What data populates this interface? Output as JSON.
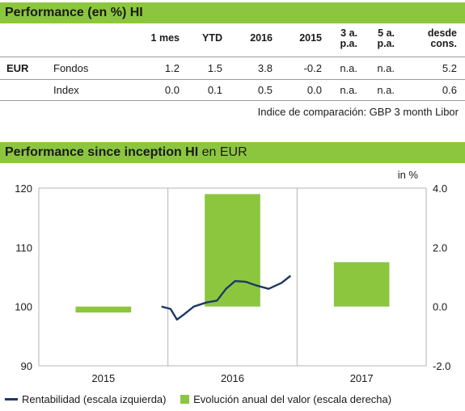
{
  "performance": {
    "title_bold": "Performance (en %) HI",
    "columns": [
      "1 mes",
      "YTD",
      "2016",
      "2015",
      "3 a.\np.a.",
      "5 a.\np.a.",
      "desde\ncons."
    ],
    "currency": "EUR",
    "rows": [
      {
        "label": "Fondos",
        "values": [
          "1.2",
          "1.5",
          "3.8",
          "-0.2",
          "n.a.",
          "n.a.",
          "5.2"
        ]
      },
      {
        "label": "Index",
        "values": [
          "0.0",
          "0.1",
          "0.5",
          "0.0",
          "n.a.",
          "n.a.",
          "0.6"
        ]
      }
    ],
    "footnote": "Indice de comparación: GBP 3 month Libor"
  },
  "chart_section": {
    "title_bold": "Performance since inception HI",
    "title_rest": " en EUR"
  },
  "chart_data": {
    "type": "bar+line",
    "categories": [
      "2015",
      "2016",
      "2017"
    ],
    "left_axis": {
      "min": 90,
      "max": 120,
      "ticks": [
        "90",
        "100",
        "110",
        "120"
      ]
    },
    "right_axis": {
      "min": -2.0,
      "max": 4.0,
      "ticks": [
        "-2.0",
        "0.0",
        "2.0",
        "4.0"
      ],
      "unit_label": "in %"
    },
    "bars": {
      "name": "Evolución anual del valor (escala derecha)",
      "color": "#8cc63f",
      "values": [
        -0.2,
        3.8,
        1.5
      ]
    },
    "line": {
      "name": "Rentabilidad (escala izquierda)",
      "color": "#1f3864",
      "x": [
        0.95,
        1.02,
        1.07,
        1.12,
        1.2,
        1.3,
        1.38,
        1.45,
        1.52,
        1.6,
        1.68,
        1.78,
        1.88,
        1.95
      ],
      "y": [
        100.0,
        99.6,
        97.8,
        98.6,
        100.0,
        100.7,
        101.0,
        103.0,
        104.3,
        104.2,
        103.6,
        103.0,
        104.0,
        105.2
      ]
    },
    "grid": "vertical"
  },
  "legend": {
    "line_label": "Rentabilidad (escala izquierda)",
    "bar_label": "Evolución anual del valor (escala derecha)"
  }
}
